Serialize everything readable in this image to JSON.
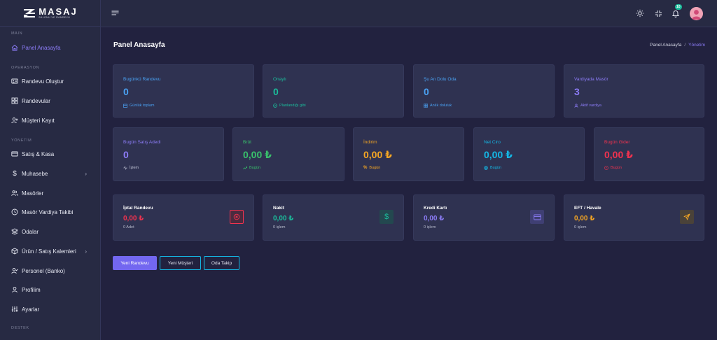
{
  "logo": {
    "title": "MASAJ",
    "subtitle": "SALONU VE RANDEVU"
  },
  "sidebar": {
    "sections": [
      "MAIN",
      "OPERASYON",
      "YÖNETİM",
      "DESTEK"
    ],
    "items": [
      {
        "label": "Panel Anasayfa",
        "icon": "home-icon",
        "active": true
      },
      {
        "label": "Randevu Oluştur",
        "icon": "id-card-icon"
      },
      {
        "label": "Randevular",
        "icon": "grid-icon"
      },
      {
        "label": "Müşteri Kayıt",
        "icon": "user-plus-icon"
      },
      {
        "label": "Satış & Kasa",
        "icon": "cash-register-icon"
      },
      {
        "label": "Muhasebe",
        "icon": "dollar-icon",
        "has_children": true
      },
      {
        "label": "Masörler",
        "icon": "users-icon"
      },
      {
        "label": "Masör Vardiya Takibi",
        "icon": "clock-icon"
      },
      {
        "label": "Odalar",
        "icon": "layers-icon"
      },
      {
        "label": "Ürün / Satış Kalemleri",
        "icon": "box-icon",
        "has_children": true
      },
      {
        "label": "Personel (Banko)",
        "icon": "user-check-icon"
      },
      {
        "label": "Profilim",
        "icon": "user-icon"
      },
      {
        "label": "Ayarlar",
        "icon": "sliders-icon"
      }
    ],
    "chevron": "›"
  },
  "topbar": {
    "notification_count": "10",
    "icons": [
      "menu-icon",
      "sun-icon",
      "collapse-icon",
      "bell-icon",
      "avatar"
    ]
  },
  "page": {
    "title": "Panel Anasayfa",
    "breadcrumb": [
      "Panel Anasayfa",
      "Yönetim"
    ],
    "breadcrumb_sep": "/"
  },
  "stats_row1": [
    {
      "label": "Bugünkü Randevu",
      "value": "0",
      "sub": "Günlük toplam",
      "color": "#4aa1f2",
      "sub_icon": "calendar-icon"
    },
    {
      "label": "Onaylı",
      "value": "0",
      "sub": "Planlandığı gibi",
      "color": "#1bbc9b",
      "sub_icon": "check-circle-icon"
    },
    {
      "label": "Şu An Dolu Oda",
      "value": "0",
      "sub": "Anlık doluluk",
      "color": "#4aa1f2",
      "sub_icon": "grid-icon"
    },
    {
      "label": "Vardiyada Masör",
      "value": "3",
      "sub": "Aktif vardiya",
      "color": "#8c7cf7",
      "sub_icon": "user-icon"
    }
  ],
  "stats_row2": [
    {
      "label": "Bugün Satış Adedi",
      "value": "0",
      "sub": "İşlem",
      "color": "#8c7cf7",
      "sub_color": "#c6c9da",
      "sub_icon": "activity-icon"
    },
    {
      "label": "Brüt",
      "value": "0,00 ₺",
      "sub": "Bugün",
      "color": "#39c16c",
      "sub_icon": "trending-up-icon"
    },
    {
      "label": "İndirim",
      "value": "0,00 ₺",
      "sub": "Bugün",
      "color": "#f5a623",
      "sub_icon": "percent-icon"
    },
    {
      "label": "Net Ciro",
      "value": "0,00 ₺",
      "sub": "Bugün",
      "color": "#14b8e6",
      "sub_icon": "globe-icon"
    },
    {
      "label": "Bugün Gider",
      "value": "0,00 ₺",
      "sub": "Bugün",
      "color": "#f0324f",
      "sub_icon": "alert-circle-icon"
    }
  ],
  "stats_row3": [
    {
      "label": "İptal Randevu",
      "value": "0,00 ₺",
      "sub": "0 Adet",
      "color": "#f0324f",
      "icon": "x-circle-icon",
      "icon_bg": "#4a2b3f"
    },
    {
      "label": "Nakit",
      "value": "0,00 ₺",
      "sub": "0 işlem",
      "color": "#1bbc9b",
      "icon": "dollar-icon",
      "icon_bg": "#23484f"
    },
    {
      "label": "Kredi Kartı",
      "value": "0,00 ₺",
      "sub": "0 işlem",
      "color": "#8c7cf7",
      "icon": "credit-card-icon",
      "icon_bg": "#3f3f73"
    },
    {
      "label": "EFT / Havale",
      "value": "0,00 ₺",
      "sub": "0 işlem",
      "color": "#f5a623",
      "icon": "send-icon",
      "icon_bg": "#4a4239"
    }
  ],
  "actions": [
    {
      "label": "Yeni Randevu",
      "style": "primary"
    },
    {
      "label": "Yeni Müşteri",
      "style": "outline"
    },
    {
      "label": "Oda Takip",
      "style": "outline"
    }
  ]
}
